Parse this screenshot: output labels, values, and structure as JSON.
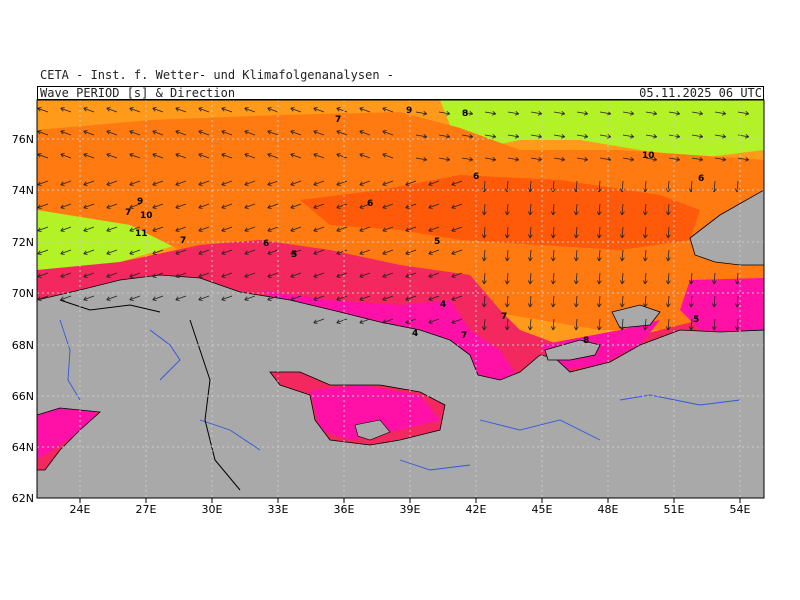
{
  "header": {
    "organization": "CETA - Inst. f. Wetter- und Klimafolgenanalysen -",
    "title": "Wave PERIOD [s] & Direction",
    "datetime": "05.11.2025 06 UTC"
  },
  "map": {
    "lon_labels": [
      "24E",
      "27E",
      "30E",
      "33E",
      "36E",
      "39E",
      "42E",
      "45E",
      "48E",
      "51E",
      "54E"
    ],
    "lat_labels": [
      "76N",
      "74N",
      "72N",
      "70N",
      "68N",
      "66N",
      "64N",
      "62N"
    ],
    "contour_labels": [
      "9",
      "8",
      "7",
      "10",
      "6",
      "9",
      "7",
      "10",
      "11",
      "7",
      "6",
      "5",
      "6",
      "5",
      "4",
      "4",
      "7",
      "7",
      "8",
      "5"
    ],
    "colors": {
      "land": "#a9a9a9",
      "green": "#b2f227",
      "orange_light": "#ff9a1a",
      "orange": "#ff7a10",
      "orange_dark": "#ff5a0a",
      "red": "#f2285e",
      "magenta": "#ff11a8",
      "rivers": "#3355dd"
    }
  }
}
